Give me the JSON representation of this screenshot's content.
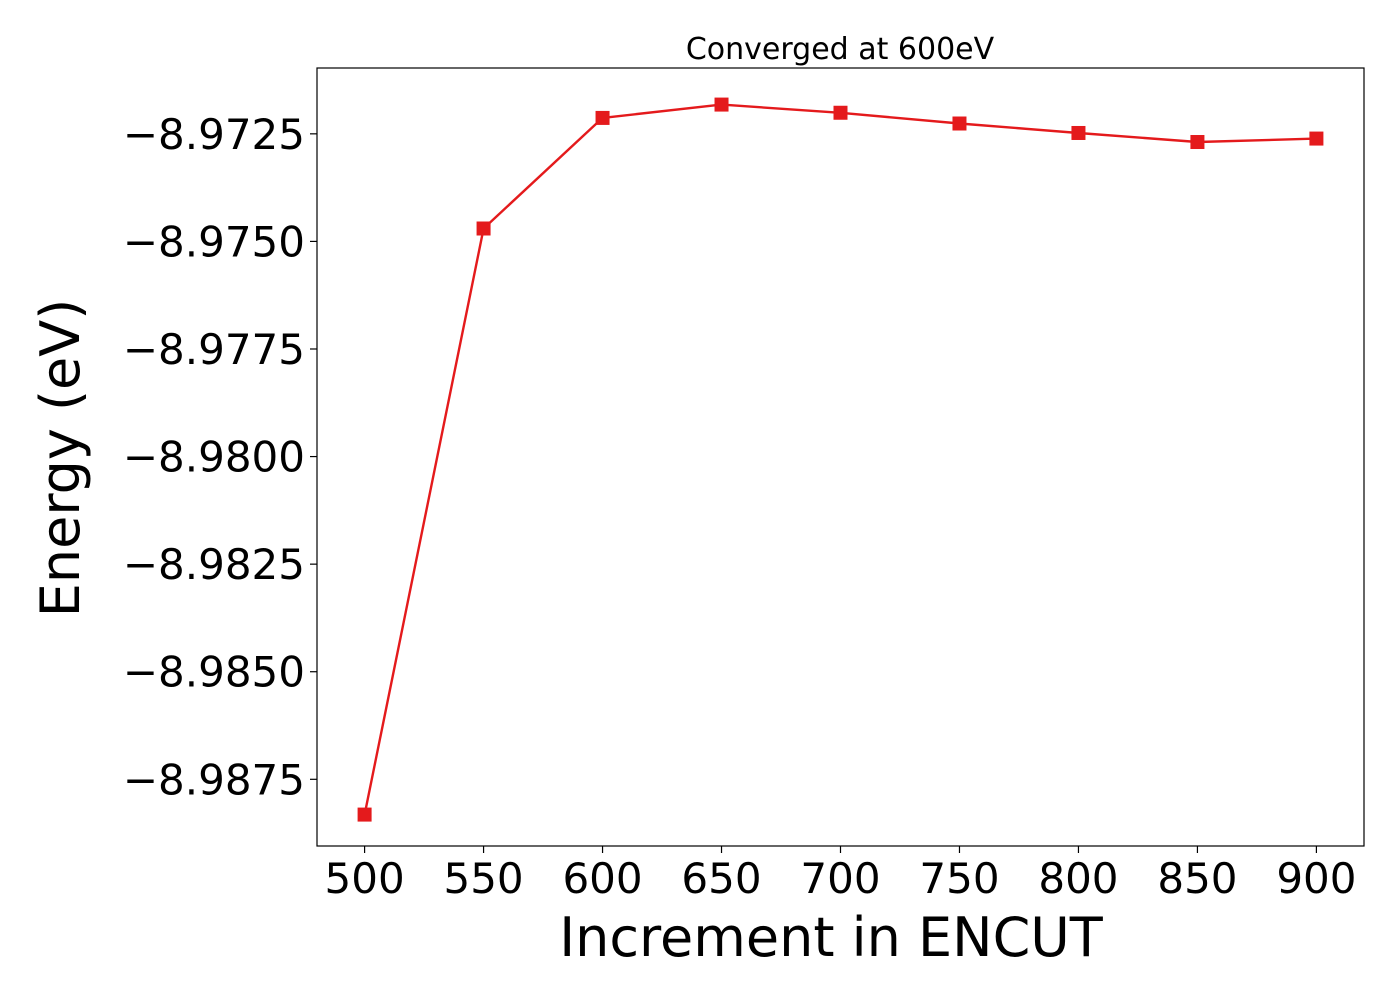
{
  "chart_data": {
    "type": "line",
    "title": "Converged at 600eV",
    "xlabel": "Increment in ENCUT",
    "ylabel": "Energy (eV)",
    "x": [
      500,
      550,
      600,
      650,
      700,
      750,
      800,
      850,
      900
    ],
    "series": [
      {
        "values": [
          -8.98832,
          -8.9747,
          -8.97213,
          -8.97182,
          -8.97201,
          -8.97226,
          -8.97248,
          -8.97269,
          -8.97261
        ],
        "color": "#e41a1c",
        "marker": "square"
      }
    ],
    "xticks": [
      "500",
      "550",
      "600",
      "650",
      "700",
      "750",
      "800",
      "850",
      "900"
    ],
    "yticks": [
      "−8.9725",
      "−8.9750",
      "−8.9775",
      "−8.9800",
      "−8.9825",
      "−8.9850",
      "−8.9875"
    ],
    "ytick_values": [
      -8.9725,
      -8.975,
      -8.9775,
      -8.98,
      -8.9825,
      -8.985,
      -8.9875
    ],
    "xlim": [
      480,
      920
    ],
    "ylim": [
      -8.98905,
      -8.97097
    ],
    "grid": false,
    "legend": false
  }
}
